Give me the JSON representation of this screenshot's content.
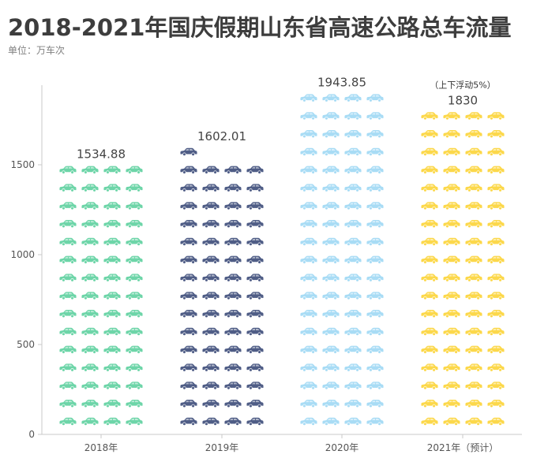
{
  "title": "2018-2021年国庆假期山东省高速公路总车流量",
  "subtitle": "单位：万车次",
  "chart_data": {
    "type": "bar",
    "style": "pictograph",
    "icon": "car-icon",
    "title": "2018-2021年国庆假期山东省高速公路总车流量",
    "unit": "万车次",
    "categories": [
      "2018年",
      "2019年",
      "2020年",
      "2021年（预计）"
    ],
    "values": [
      1534.88,
      1602.01,
      1943.85,
      1830
    ],
    "value_labels": [
      "1534.88",
      "1602.01",
      "1943.85",
      "1830"
    ],
    "colors": [
      "#6dd5a8",
      "#4f5d86",
      "#a8dcf5",
      "#fcd84a"
    ],
    "annotations": [
      {
        "category": "2021年（预计）",
        "text": "（上下浮动5%）"
      }
    ],
    "ylim": [
      0,
      1900
    ],
    "yticks": [
      0,
      500,
      1000,
      1500
    ],
    "grid": false,
    "legend": "none"
  }
}
